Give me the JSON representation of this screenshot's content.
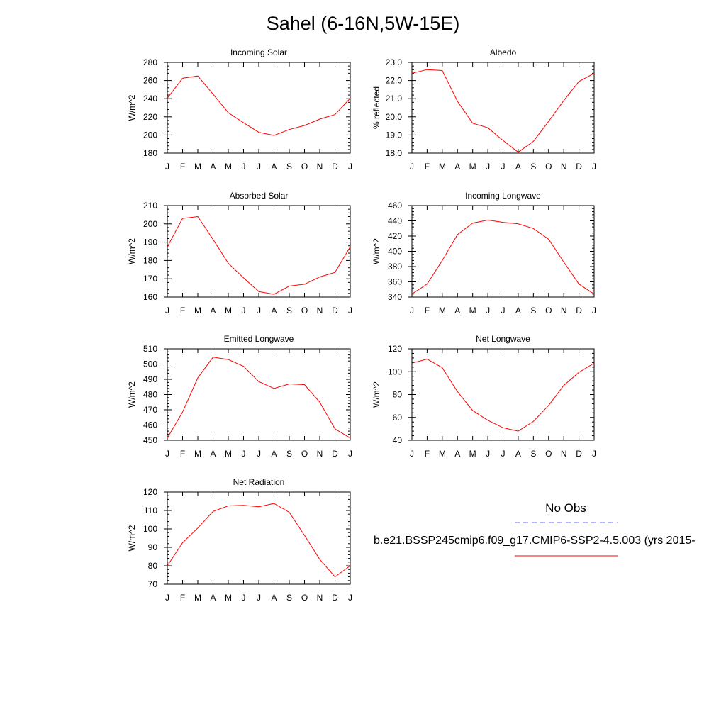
{
  "title": "Sahel (6-16N,5W-15E)",
  "colors": {
    "model_line": "#ff0000",
    "obs_line": "#6666ff",
    "axis": "#000000"
  },
  "legend": {
    "obs_label": "No Obs",
    "model_label": "b.e21.BSSP245cmip6.f09_g17.CMIP6-SSP2-4.5.003 (yrs 2015-"
  },
  "chart_data": [
    {
      "type": "line",
      "title": "Incoming Solar",
      "ylabel": "W/m^2",
      "categories": [
        "J",
        "F",
        "M",
        "A",
        "M",
        "J",
        "J",
        "A",
        "S",
        "O",
        "N",
        "D",
        "J"
      ],
      "ylim": [
        180,
        280
      ],
      "yticks": [
        "280",
        "260",
        "240",
        "220",
        "200",
        "180"
      ],
      "series": [
        {
          "values": [
            240.5,
            262.5,
            265,
            245,
            224.5,
            213.5,
            203,
            199.5,
            206,
            210.5,
            217.5,
            222.5,
            240.5
          ]
        }
      ]
    },
    {
      "type": "line",
      "title": "Albedo",
      "ylabel": "% reflected",
      "categories": [
        "J",
        "F",
        "M",
        "A",
        "M",
        "J",
        "J",
        "A",
        "S",
        "O",
        "N",
        "D",
        "J"
      ],
      "ylim": [
        18,
        23
      ],
      "yticks": [
        "23.0",
        "22.0",
        "21.0",
        "20.0",
        "19.0",
        "18.0"
      ],
      "series": [
        {
          "values": [
            22.4,
            22.6,
            22.55,
            20.85,
            19.65,
            19.4,
            18.7,
            18.05,
            18.65,
            19.75,
            20.9,
            21.95,
            22.4
          ]
        }
      ]
    },
    {
      "type": "line",
      "title": "Absorbed Solar",
      "ylabel": "W/m^2",
      "categories": [
        "J",
        "F",
        "M",
        "A",
        "M",
        "J",
        "J",
        "A",
        "S",
        "O",
        "N",
        "D",
        "J"
      ],
      "ylim": [
        160,
        210
      ],
      "yticks": [
        "210",
        "200",
        "190",
        "180",
        "170",
        "160"
      ],
      "series": [
        {
          "values": [
            187.5,
            203,
            204,
            191.5,
            178.5,
            170.5,
            163,
            161.5,
            166,
            167,
            171,
            173.5,
            187.5
          ]
        }
      ]
    },
    {
      "type": "line",
      "title": "Incoming Longwave",
      "ylabel": "W/m^2",
      "categories": [
        "J",
        "F",
        "M",
        "A",
        "M",
        "J",
        "J",
        "A",
        "S",
        "O",
        "N",
        "D",
        "J"
      ],
      "ylim": [
        340,
        460
      ],
      "yticks": [
        "460",
        "440",
        "420",
        "400",
        "380",
        "360",
        "340"
      ],
      "series": [
        {
          "values": [
            344,
            357,
            388,
            422,
            437,
            441,
            438,
            436,
            430,
            416,
            386,
            357,
            344
          ]
        }
      ]
    },
    {
      "type": "line",
      "title": "Emitted Longwave",
      "ylabel": "W/m^2",
      "categories": [
        "J",
        "F",
        "M",
        "A",
        "M",
        "J",
        "J",
        "A",
        "S",
        "O",
        "N",
        "D",
        "J"
      ],
      "ylim": [
        450,
        510
      ],
      "yticks": [
        "510",
        "500",
        "490",
        "480",
        "470",
        "460",
        "450"
      ],
      "series": [
        {
          "values": [
            451.5,
            468.5,
            491,
            504.5,
            503,
            498.5,
            488.5,
            484,
            487,
            486.5,
            475,
            457.5,
            451.5
          ]
        }
      ]
    },
    {
      "type": "line",
      "title": "Net Longwave",
      "ylabel": "W/m^2",
      "categories": [
        "J",
        "F",
        "M",
        "A",
        "M",
        "J",
        "J",
        "A",
        "S",
        "O",
        "N",
        "D",
        "J"
      ],
      "ylim": [
        40,
        120
      ],
      "yticks": [
        "120",
        "100",
        "80",
        "60",
        "40"
      ],
      "series": [
        {
          "values": [
            107.5,
            111,
            103.5,
            82.5,
            66,
            57.5,
            51,
            48,
            56.5,
            70.5,
            88,
            99.5,
            107.5
          ]
        }
      ]
    },
    {
      "type": "line",
      "title": "Net Radiation",
      "ylabel": "W/m^2",
      "categories": [
        "J",
        "F",
        "M",
        "A",
        "M",
        "J",
        "J",
        "A",
        "S",
        "O",
        "N",
        "D",
        "J"
      ],
      "ylim": [
        70,
        120
      ],
      "yticks": [
        "120",
        "110",
        "100",
        "90",
        "80",
        "70"
      ],
      "series": [
        {
          "values": [
            80,
            92.5,
            100.5,
            109.5,
            112.5,
            112.8,
            112,
            113.8,
            109,
            96.5,
            83.5,
            74,
            80
          ]
        }
      ]
    }
  ]
}
